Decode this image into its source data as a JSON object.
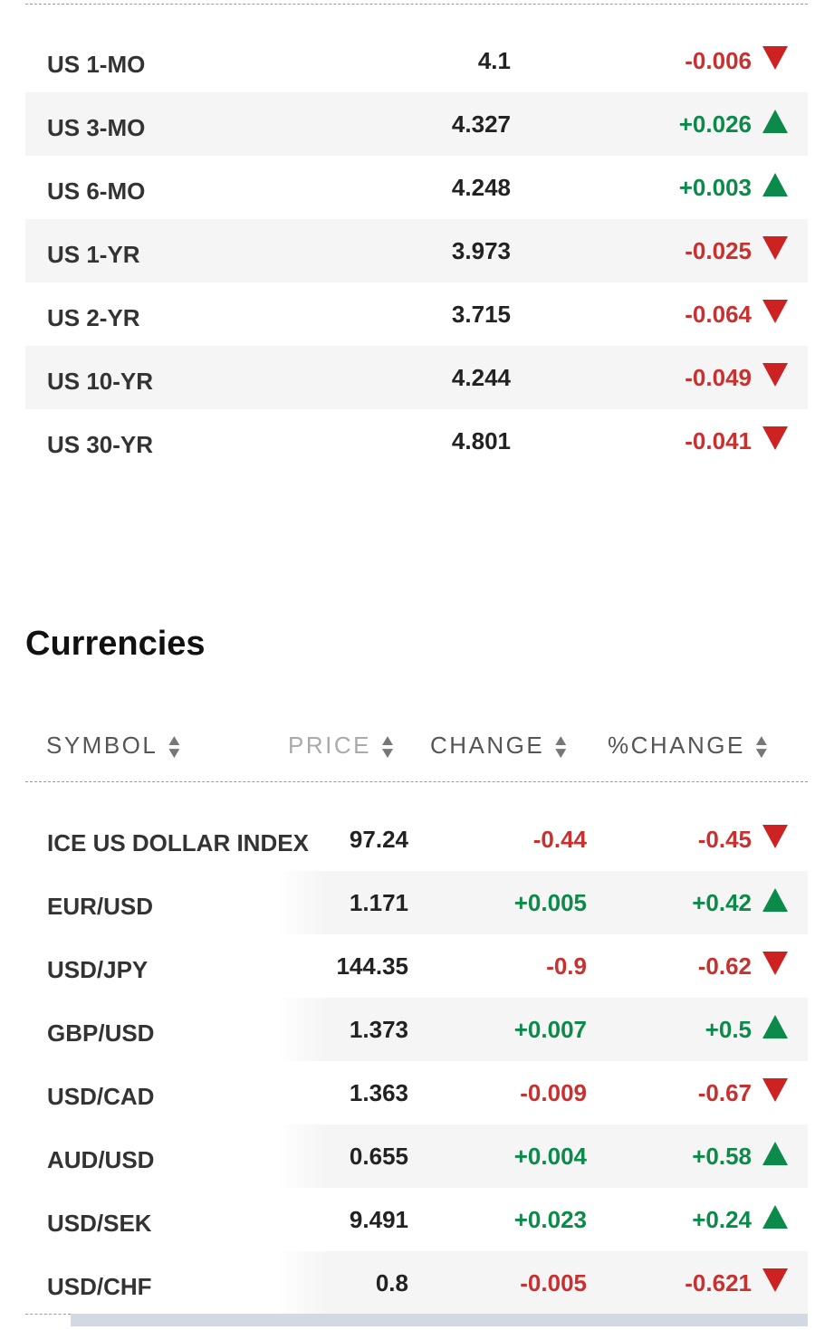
{
  "bonds": [
    {
      "symbol": "US 1-MO",
      "price": "4.1",
      "change": "-0.006",
      "direction": "down"
    },
    {
      "symbol": "US 3-MO",
      "price": "4.327",
      "change": "+0.026",
      "direction": "up"
    },
    {
      "symbol": "US 6-MO",
      "price": "4.248",
      "change": "+0.003",
      "direction": "up"
    },
    {
      "symbol": "US 1-YR",
      "price": "3.973",
      "change": "-0.025",
      "direction": "down"
    },
    {
      "symbol": "US 2-YR",
      "price": "3.715",
      "change": "-0.064",
      "direction": "down"
    },
    {
      "symbol": "US 10-YR",
      "price": "4.244",
      "change": "-0.049",
      "direction": "down"
    },
    {
      "symbol": "US 30-YR",
      "price": "4.801",
      "change": "-0.041",
      "direction": "down"
    }
  ],
  "currencies": {
    "title": "Currencies",
    "columns": {
      "symbol": "SYMBOL",
      "price": "PRICE",
      "change": "CHANGE",
      "pct_change": "%CHANGE"
    },
    "rows": [
      {
        "symbol": "ICE US DOLLAR INDEX",
        "price": "97.24",
        "change": "-0.44",
        "pct_change": "-0.45",
        "direction": "down"
      },
      {
        "symbol": "EUR/USD",
        "price": "1.171",
        "change": "+0.005",
        "pct_change": "+0.42",
        "direction": "up"
      },
      {
        "symbol": "USD/JPY",
        "price": "144.35",
        "change": "-0.9",
        "pct_change": "-0.62",
        "direction": "down"
      },
      {
        "symbol": "GBP/USD",
        "price": "1.373",
        "change": "+0.007",
        "pct_change": "+0.5",
        "direction": "up"
      },
      {
        "symbol": "USD/CAD",
        "price": "1.363",
        "change": "-0.009",
        "pct_change": "-0.67",
        "direction": "down"
      },
      {
        "symbol": "AUD/USD",
        "price": "0.655",
        "change": "+0.004",
        "pct_change": "+0.58",
        "direction": "up"
      },
      {
        "symbol": "USD/SEK",
        "price": "9.491",
        "change": "+0.023",
        "pct_change": "+0.24",
        "direction": "up"
      },
      {
        "symbol": "USD/CHF",
        "price": "0.8",
        "change": "-0.005",
        "pct_change": "-0.621",
        "direction": "down"
      }
    ]
  },
  "colors": {
    "positive": "#0b8a4a",
    "negative": "#c8312f",
    "stripe": "#f5f5f5"
  }
}
